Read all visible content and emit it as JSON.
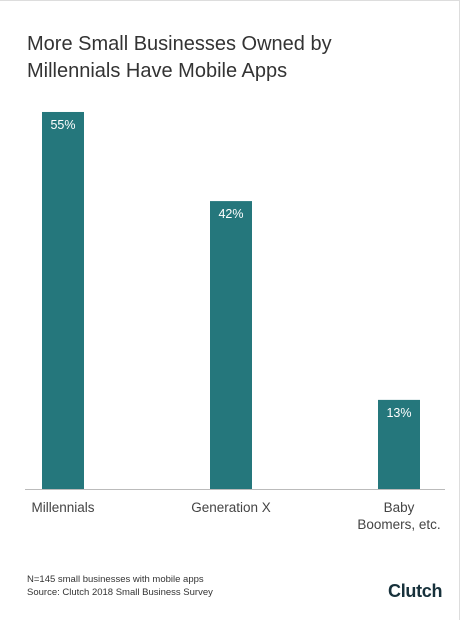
{
  "chart_data": {
    "type": "bar",
    "title": "More Small Businesses Owned by Millennials Have Mobile Apps",
    "categories": [
      "Millennials",
      "Generation X",
      "Baby Boomers, etc."
    ],
    "values": [
      55,
      42,
      13
    ],
    "value_labels": [
      "55%",
      "42%",
      "13%"
    ],
    "color": "#25777c"
  },
  "footnote": {
    "sample": "N=145 small businesses with mobile apps",
    "source": "Source: Clutch 2018 Small Business Survey"
  },
  "logo": "Clutch"
}
